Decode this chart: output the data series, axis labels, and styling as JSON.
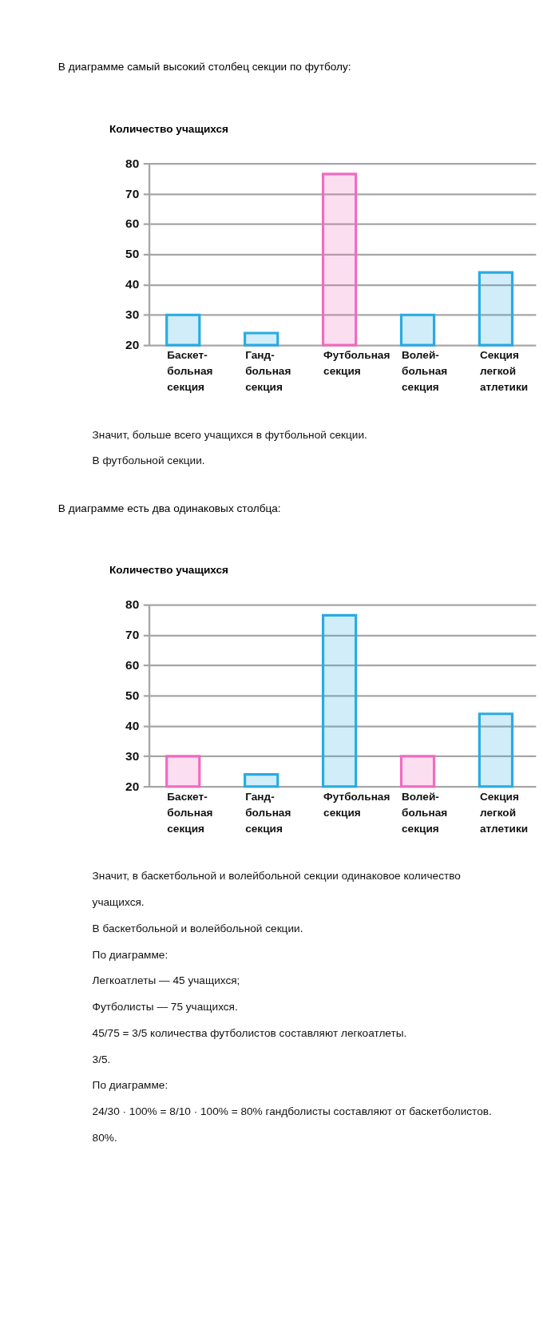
{
  "chart_data": [
    {
      "type": "bar",
      "title": "В диаграмме самый высокий столбец секции по футболу:",
      "ylabel": "Количество учащихся",
      "categories": [
        "Баскет-\nбольная\nсекция",
        "Ганд-\nбольная\nсекция",
        "Футбольная\nсекция",
        "Волей-\nбольная\nсекция",
        "Секция\nлегкой\nатлетики"
      ],
      "values": [
        30,
        24,
        76.5,
        30,
        44
      ],
      "colors": [
        "#29abe2",
        "#29abe2",
        "#f06bbf",
        "#29abe2",
        "#29abe2"
      ],
      "ylim": [
        20,
        80
      ],
      "yticks": [
        20,
        30,
        40,
        50,
        60,
        70,
        80
      ],
      "grid": "y",
      "legend": false,
      "annotations": [
        "Значит, больше всего учащихся в футбольной секции.",
        "В футбольной секции."
      ]
    },
    {
      "type": "bar",
      "title": "В диаграмме есть два одинаковых столбца:",
      "ylabel": "Количество учащихся",
      "categories": [
        "Баскет-\nбольная\nсекция",
        "Ганд-\nбольная\nсекция",
        "Футбольная\nсекция",
        "Волей-\nбольная\nсекция",
        "Секция\nлегкой\nатлетики"
      ],
      "values": [
        30,
        24,
        76.5,
        30,
        44
      ],
      "colors": [
        "#f06bbf",
        "#29abe2",
        "#29abe2",
        "#f06bbf",
        "#29abe2"
      ],
      "ylim": [
        20,
        80
      ],
      "yticks": [
        20,
        30,
        40,
        50,
        60,
        70,
        80
      ],
      "grid": "y",
      "legend": false,
      "annotations": [
        "Значит, в баскетбольной и волейбольной секции одинаковое количество",
        "учащихся.",
        "В баскетбольной и волейбольной секции.",
        "По диаграмме:",
        "Легкоатлеты — 45 учащихся;",
        "Футболисты — 75 учащихся.",
        "45/75 = 3/5 количества футболистов составляют легкоатлеты.",
        "3/5.",
        "По диаграмме:",
        "24/30 · 100% = 8/10 · 100% = 80% гандболисты составляют от баскетболистов.",
        "80%."
      ]
    }
  ]
}
